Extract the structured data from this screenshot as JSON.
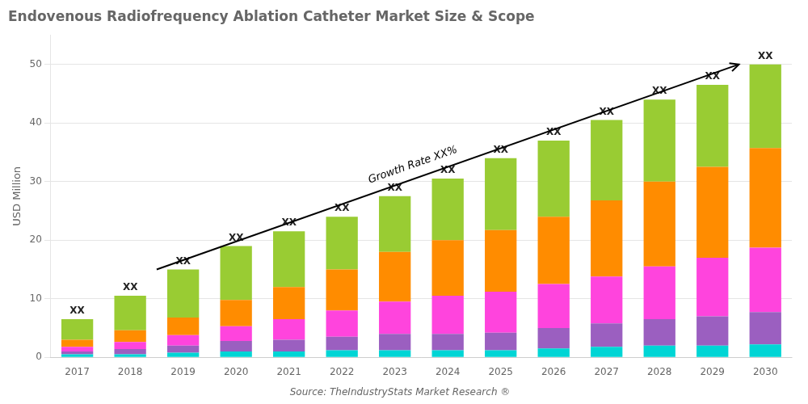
{
  "chart_data": {
    "type": "bar",
    "title": "Endovenous Radiofrequency Ablation Catheter Market Size & Scope",
    "ylabel": "USD Million",
    "source": "Source: TheIndustryStats Market Research ®",
    "categories": [
      "2017",
      "2018",
      "2019",
      "2020",
      "2021",
      "2022",
      "2023",
      "2024",
      "2025",
      "2026",
      "2027",
      "2028",
      "2029",
      "2030"
    ],
    "series": [
      {
        "color": "#00D5D5",
        "values": [
          0.5,
          0.5,
          0.8,
          1.0,
          1.0,
          1.2,
          1.2,
          1.2,
          1.2,
          1.5,
          1.8,
          2.0,
          2.0,
          2.2
        ]
      },
      {
        "color": "#9B5FC0",
        "values": [
          0.5,
          0.9,
          1.2,
          1.8,
          2.0,
          2.3,
          2.8,
          2.8,
          3.0,
          3.5,
          4.0,
          4.5,
          5.0,
          5.5
        ]
      },
      {
        "color": "#FF44DD",
        "values": [
          0.8,
          1.2,
          1.8,
          2.5,
          3.5,
          4.5,
          5.5,
          6.5,
          7.0,
          7.5,
          8.0,
          9.0,
          10.0,
          11.0
        ]
      },
      {
        "color": "#FF8C00",
        "values": [
          1.2,
          2.0,
          3.0,
          4.5,
          5.5,
          7.0,
          8.5,
          9.5,
          10.5,
          11.5,
          13.0,
          14.5,
          15.5,
          17.0
        ]
      },
      {
        "color": "#99CC33",
        "values": [
          3.5,
          5.9,
          8.2,
          9.2,
          9.5,
          9.0,
          9.5,
          10.5,
          12.3,
          13.0,
          13.7,
          14.0,
          14.0,
          14.3
        ]
      }
    ],
    "stacked": true,
    "stack_labels": [
      "XX",
      "XX",
      "XX",
      "XX",
      "XX",
      "XX",
      "XX",
      "XX",
      "XX",
      "XX",
      "XX",
      "XX",
      "XX",
      "XX"
    ],
    "stack_totals": [
      6.5,
      10.5,
      15.0,
      19.0,
      21.5,
      24.0,
      27.5,
      30.5,
      34.0,
      37.0,
      40.5,
      44.0,
      46.5,
      50.0
    ],
    "arrow": {
      "start": [
        1.5,
        15.0
      ],
      "end": [
        12.5,
        50.0
      ],
      "label": "Growth Rate XX%"
    },
    "ylim": [
      0,
      55
    ],
    "yticks": [
      0,
      10,
      20,
      30,
      40,
      50
    ],
    "grid": true
  }
}
